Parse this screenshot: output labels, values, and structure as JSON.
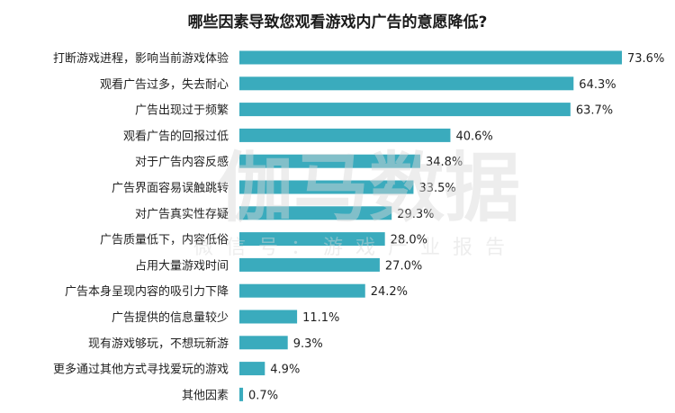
{
  "chart_data": {
    "type": "bar",
    "orientation": "horizontal",
    "title": "哪些因素导致您观看游戏内广告的意愿降低?",
    "categories": [
      "打断游戏进程，影响当前游戏体验",
      "观看广告过多，失去耐心",
      "广告出现过于频繁",
      "观看广告的回报过低",
      "对于广告内容反感",
      "广告界面容易误触跳转",
      "对广告真实性存疑",
      "广告质量低下，内容低俗",
      "占用大量游戏时间",
      "广告本身呈现内容的吸引力下降",
      "广告提供的信息量较少",
      "现有游戏够玩，不想玩新游",
      "更多通过其他方式寻找爱玩的游戏",
      "其他因素"
    ],
    "values": [
      73.6,
      64.3,
      63.7,
      40.6,
      34.8,
      33.5,
      29.3,
      28.0,
      27.0,
      24.2,
      11.1,
      9.3,
      4.9,
      0.7
    ],
    "value_labels": [
      "73.6%",
      "64.3%",
      "63.7%",
      "40.6%",
      "34.8%",
      "33.5%",
      "29.3%",
      "28.0%",
      "27.0%",
      "24.2%",
      "11.1%",
      "9.3%",
      "4.9%",
      "0.7%"
    ],
    "bar_color": "#3aabbd",
    "grid": false,
    "legend": "none",
    "watermark": {
      "main": "伽马数据",
      "sub": "微信号：游戏产业报告"
    }
  }
}
